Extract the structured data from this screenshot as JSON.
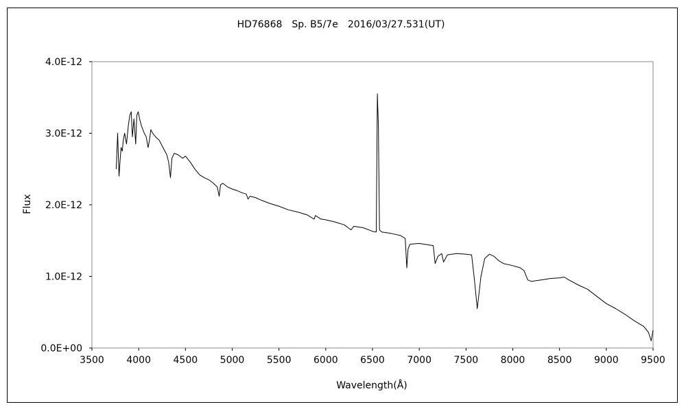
{
  "chart_data": {
    "type": "line",
    "title": "HD76868　Sp. B5/7e　2016/03/27.531(UT)",
    "xlabel": "Wavelength(Å)",
    "ylabel": "Flux",
    "xlim": [
      3500,
      9500
    ],
    "ylim": [
      0,
      4e-12
    ],
    "x_ticks": [
      3500,
      4000,
      4500,
      5000,
      5500,
      6000,
      6500,
      7000,
      7500,
      8000,
      8500,
      9000,
      9500
    ],
    "x_tick_labels": [
      "3500",
      "4000",
      "4500",
      "5000",
      "5500",
      "6000",
      "6500",
      "7000",
      "7500",
      "8000",
      "8500",
      "9000",
      "9500"
    ],
    "y_ticks": [
      0,
      1e-12,
      2e-12,
      3e-12,
      4e-12
    ],
    "y_tick_labels": [
      "0.0E+00",
      "1.0E-12",
      "2.0E-12",
      "3.0E-12",
      "4.0E-12"
    ],
    "grid": false,
    "legend": "none",
    "series": [
      {
        "color": "#000000",
        "x": [
          3760,
          3775,
          3790,
          3800,
          3812,
          3825,
          3835,
          3850,
          3870,
          3889,
          3905,
          3920,
          3933,
          3950,
          3968,
          3980,
          3995,
          4010,
          4030,
          4060,
          4080,
          4101,
          4115,
          4130,
          4150,
          4180,
          4220,
          4260,
          4300,
          4320,
          4340,
          4355,
          4380,
          4420,
          4471,
          4500,
          4550,
          4600,
          4650,
          4700,
          4750,
          4800,
          4840,
          4861,
          4875,
          4900,
          4950,
          5000,
          5050,
          5100,
          5150,
          5169,
          5190,
          5250,
          5300,
          5400,
          5500,
          5600,
          5700,
          5800,
          5876,
          5890,
          5950,
          6000,
          6100,
          6200,
          6270,
          6300,
          6400,
          6500,
          6540,
          6552,
          6563,
          6575,
          6600,
          6700,
          6800,
          6850,
          6867,
          6880,
          6900,
          7000,
          7100,
          7150,
          7170,
          7200,
          7240,
          7260,
          7300,
          7400,
          7500,
          7560,
          7590,
          7620,
          7660,
          7700,
          7750,
          7800,
          7850,
          7900,
          8000,
          8080,
          8120,
          8160,
          8200,
          8300,
          8400,
          8500,
          8550,
          8600,
          8700,
          8800,
          8900,
          9000,
          9100,
          9200,
          9300,
          9400,
          9450,
          9480,
          9500
        ],
        "y": [
          2.5e-12,
          3e-12,
          2.4e-12,
          2.6e-12,
          2.8e-12,
          2.75e-12,
          2.9e-12,
          3e-12,
          2.85e-12,
          3.1e-12,
          3.25e-12,
          3.3e-12,
          2.95e-12,
          3.2e-12,
          2.85e-12,
          3.25e-12,
          3.3e-12,
          3.2e-12,
          3.1e-12,
          3e-12,
          2.95e-12,
          2.8e-12,
          2.9e-12,
          3.05e-12,
          3e-12,
          2.95e-12,
          2.9e-12,
          2.8e-12,
          2.7e-12,
          2.6e-12,
          2.38e-12,
          2.65e-12,
          2.72e-12,
          2.7e-12,
          2.65e-12,
          2.68e-12,
          2.6e-12,
          2.5e-12,
          2.42e-12,
          2.38e-12,
          2.35e-12,
          2.3e-12,
          2.25e-12,
          2.12e-12,
          2.28e-12,
          2.3e-12,
          2.25e-12,
          2.22e-12,
          2.2e-12,
          2.17e-12,
          2.15e-12,
          2.08e-12,
          2.12e-12,
          2.1e-12,
          2.07e-12,
          2.02e-12,
          1.98e-12,
          1.93e-12,
          1.9e-12,
          1.86e-12,
          1.8e-12,
          1.85e-12,
          1.8e-12,
          1.79e-12,
          1.76e-12,
          1.72e-12,
          1.65e-12,
          1.7e-12,
          1.68e-12,
          1.63e-12,
          1.62e-12,
          3.55e-12,
          3.1e-12,
          1.65e-12,
          1.62e-12,
          1.6e-12,
          1.57e-12,
          1.53e-12,
          1.12e-12,
          1.38e-12,
          1.45e-12,
          1.46e-12,
          1.44e-12,
          1.43e-12,
          1.18e-12,
          1.28e-12,
          1.32e-12,
          1.2e-12,
          1.3e-12,
          1.32e-12,
          1.31e-12,
          1.3e-12,
          9.5e-13,
          5.5e-13,
          1e-12,
          1.25e-12,
          1.31e-12,
          1.28e-12,
          1.22e-12,
          1.18e-12,
          1.15e-12,
          1.12e-12,
          1.08e-12,
          9.5e-13,
          9.3e-13,
          9.5e-13,
          9.7e-13,
          9.8e-13,
          9.9e-13,
          9.5e-13,
          8.8e-13,
          8.2e-13,
          7.2e-13,
          6.2e-13,
          5.5e-13,
          4.7e-13,
          3.8e-13,
          3e-13,
          2.2e-13,
          1e-13,
          2.5e-13
        ]
      }
    ]
  }
}
